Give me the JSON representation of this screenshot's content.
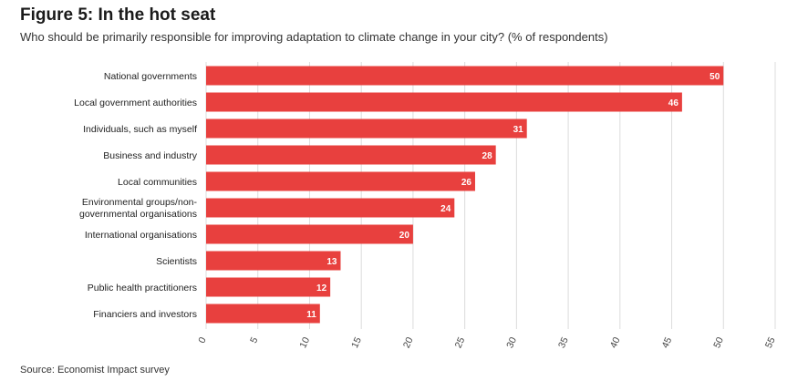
{
  "title": "Figure 5: In the hot seat",
  "subtitle": "Who should be primarily responsible for improving adaptation to climate change in your city? (% of respondents)",
  "source": "Source: Economist Impact survey",
  "colors": {
    "bar": "#e8403e",
    "grid": "#dcdcdc",
    "value_text": "#ffffff"
  },
  "chart_data": {
    "type": "bar",
    "orientation": "horizontal",
    "categories": [
      "National governments",
      "Local government authorities",
      "Individuals, such as myself",
      "Business and industry",
      "Local communities",
      "Environmental groups/non-governmental organisations",
      "International organisations",
      "Scientists",
      "Public health practitioners",
      "Financiers and investors"
    ],
    "values": [
      50,
      46,
      31,
      28,
      26,
      24,
      20,
      13,
      12,
      11
    ],
    "xlim": [
      0,
      55
    ],
    "ticks": [
      0,
      5,
      10,
      15,
      20,
      25,
      30,
      35,
      40,
      45,
      50,
      55
    ],
    "grid": "vertical",
    "data_labels": "inside-end"
  }
}
